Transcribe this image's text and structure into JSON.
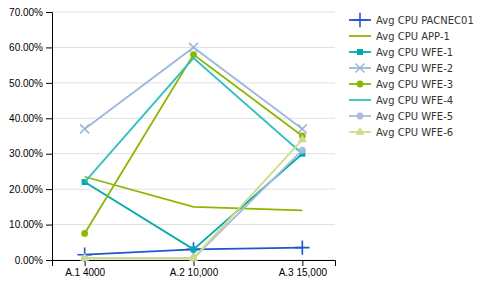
{
  "chart_data": {
    "type": "line",
    "categories": [
      "A.1 4000",
      "A.2 10,000",
      "A.3 15,000"
    ],
    "series": [
      {
        "name": "Avg CPU PACNEC01",
        "color": "#2155CD",
        "marker": "plus",
        "values": [
          0.015,
          0.03,
          0.035
        ]
      },
      {
        "name": "Avg CPU APP-1",
        "color": "#8DB600",
        "values": [
          0.235,
          0.15,
          0.14
        ]
      },
      {
        "name": "Avg CPU WFE-1",
        "color": "#00AAAA",
        "marker": "square",
        "values": [
          0.22,
          0.03,
          0.3
        ]
      },
      {
        "name": "Avg CPU WFE-2",
        "color": "#9DB8D9",
        "marker": "x",
        "values": [
          0.37,
          0.6,
          0.37
        ]
      },
      {
        "name": "Avg CPU WFE-3",
        "color": "#8DB600",
        "marker": "circle",
        "values": [
          0.075,
          0.58,
          0.35
        ]
      },
      {
        "name": "Avg CPU WFE-4",
        "color": "#30C0C0",
        "values": [
          0.22,
          0.57,
          0.3
        ]
      },
      {
        "name": "Avg CPU WFE-5",
        "color": "#AABBDD",
        "marker": "circle",
        "values": [
          0.005,
          0.005,
          0.31
        ]
      },
      {
        "name": "Avg CPU WFE-6",
        "color": "#CCDD88",
        "marker": "triangle",
        "values": [
          0.005,
          0.005,
          0.34
        ]
      }
    ],
    "ylim": [
      0.0,
      0.7
    ],
    "yticks": [
      {
        "value": 0.0,
        "label": "0.00%"
      },
      {
        "value": 0.1,
        "label": "10.00%"
      },
      {
        "value": 0.2,
        "label": "20.00%"
      },
      {
        "value": 0.3,
        "label": "30.00%"
      },
      {
        "value": 0.4,
        "label": "40.00%"
      },
      {
        "value": 0.5,
        "label": "50.00%"
      },
      {
        "value": 0.6,
        "label": "60.00%"
      },
      {
        "value": 0.7,
        "label": "70.00%"
      }
    ],
    "grid": true,
    "legend": "right"
  }
}
